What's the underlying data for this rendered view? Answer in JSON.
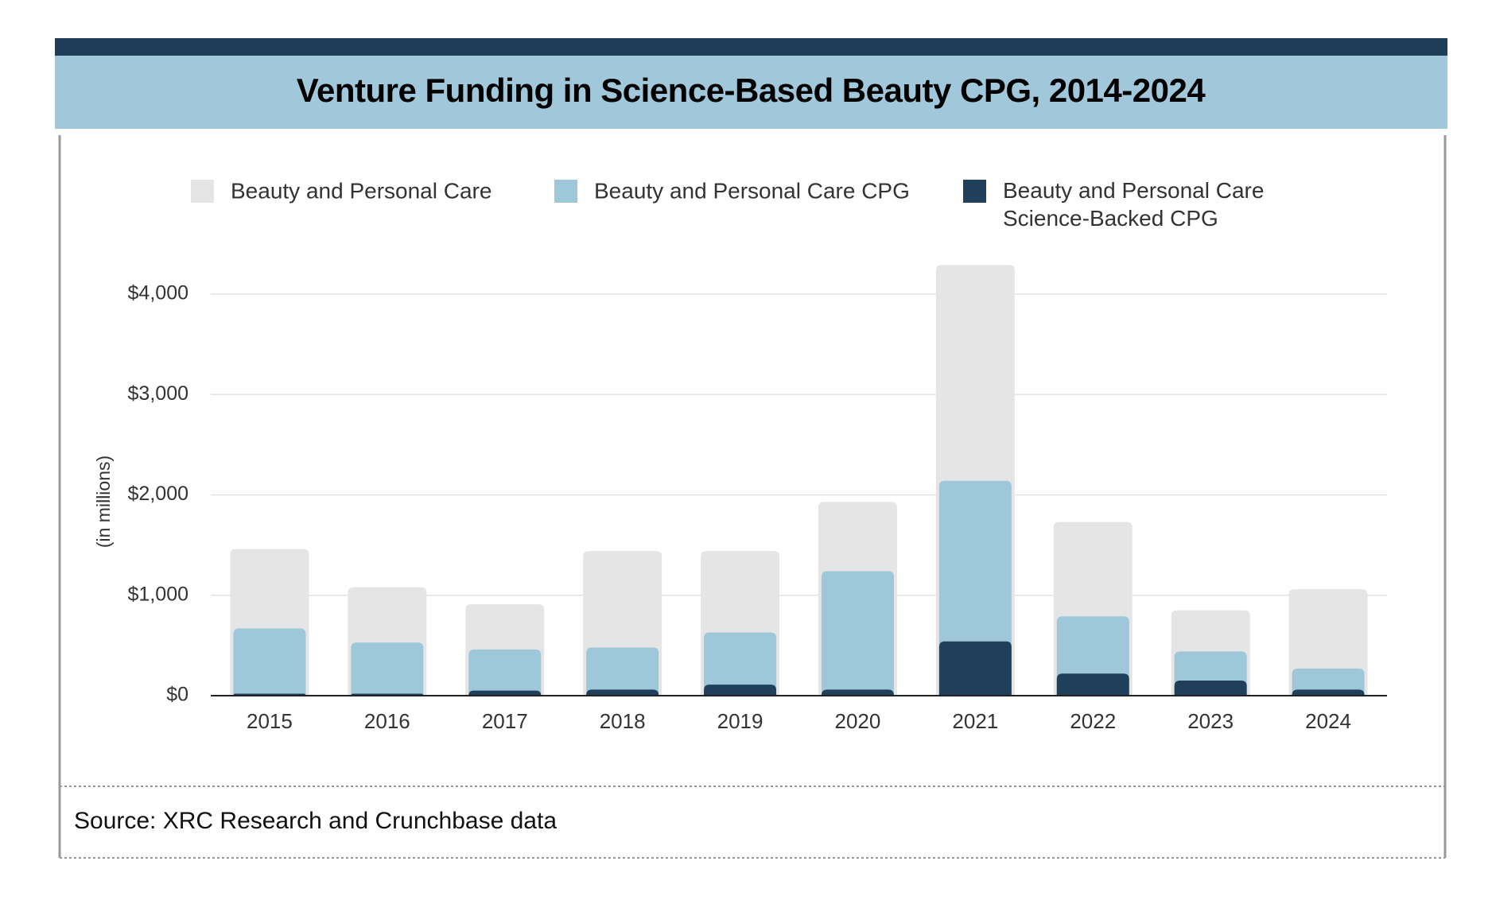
{
  "chart_data": {
    "type": "overlapping_bar",
    "title": "Venture Funding in Science-Based Beauty CPG, 2014-2024",
    "y_axis_label": "(in millions)",
    "source": "Source: XRC Research and Crunchbase data",
    "categories": [
      "2015",
      "2016",
      "2017",
      "2018",
      "2019",
      "2020",
      "2021",
      "2022",
      "2023",
      "2024"
    ],
    "series": [
      {
        "name": "Beauty and Personal Care",
        "color": "#e5e5e5",
        "values": [
          1460,
          1080,
          910,
          1440,
          1440,
          1930,
          4290,
          1730,
          850,
          1060
        ]
      },
      {
        "name": "Beauty and Personal Care CPG",
        "color": "#9ec7da",
        "values": [
          670,
          530,
          460,
          480,
          630,
          1240,
          2140,
          790,
          440,
          270
        ]
      },
      {
        "name": "Beauty and Personal Care Science-Backed CPG",
        "color": "#1f3f5a",
        "values": [
          20,
          20,
          50,
          60,
          110,
          60,
          540,
          220,
          150,
          60
        ]
      }
    ],
    "ylim": [
      0,
      4300
    ],
    "yticks": [
      {
        "value": 0,
        "label": "$0"
      },
      {
        "value": 1000,
        "label": "$1,000"
      },
      {
        "value": 2000,
        "label": "$2,000"
      },
      {
        "value": 3000,
        "label": "$3,000"
      },
      {
        "value": 4000,
        "label": "$4,000"
      }
    ],
    "grid": true
  }
}
